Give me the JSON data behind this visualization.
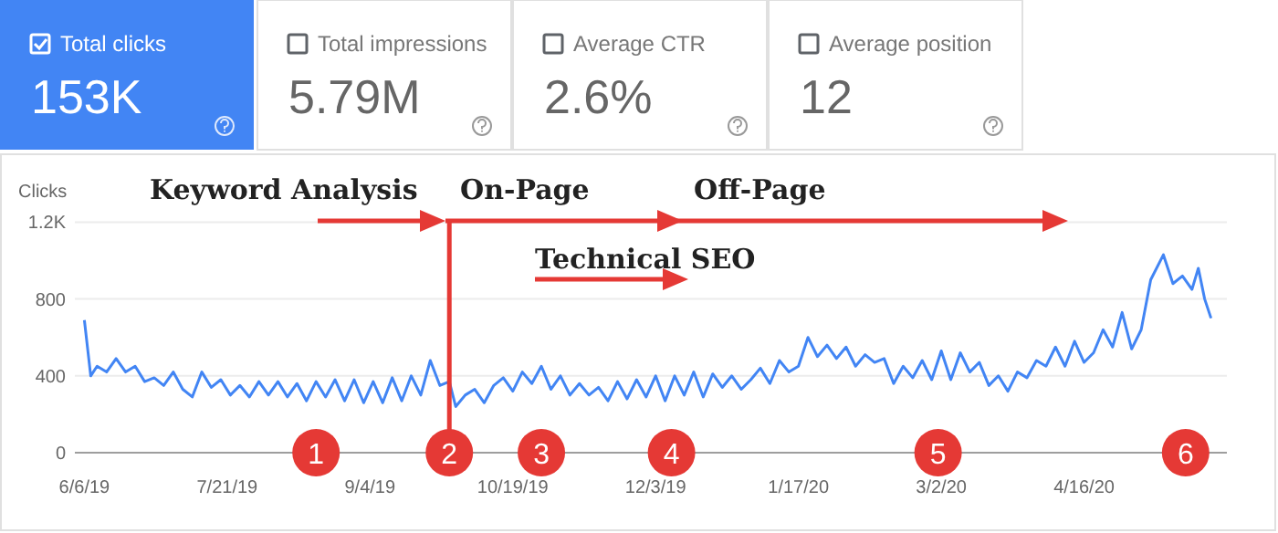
{
  "chart_data": [
    {
      "type": "other",
      "annotations": [
        "Total clicks",
        "153K",
        "Total impressions",
        "5.79M",
        "Average CTR",
        "2.6%",
        "Average position",
        "12"
      ]
    },
    {
      "type": "line",
      "ylabel": "Clicks",
      "color": "#4285f4",
      "grid": "y",
      "marker": "none",
      "xlim": [
        "2019-06-03",
        "2020-05-31"
      ],
      "ylim": [
        0,
        1200
      ],
      "yticks": [
        0,
        400,
        800,
        {
          "value": 1200,
          "label": "1.2K"
        }
      ],
      "xticks": [
        {
          "value": "2019-06-06",
          "label": "6/6/19"
        },
        {
          "value": "2019-07-21",
          "label": "7/21/19"
        },
        {
          "value": "2019-09-04",
          "label": "9/4/19"
        },
        {
          "value": "2019-10-19",
          "label": "10/19/19"
        },
        {
          "value": "2019-12-03",
          "label": "12/3/19"
        },
        {
          "value": "2020-01-17",
          "label": "1/17/20"
        },
        {
          "value": "2020-03-02",
          "label": "3/2/20"
        },
        {
          "value": "2020-04-16",
          "label": "4/16/20"
        }
      ],
      "x": [
        "2019-06-06",
        "2019-06-08",
        "2019-06-10",
        "2019-06-13",
        "2019-06-16",
        "2019-06-19",
        "2019-06-22",
        "2019-06-25",
        "2019-06-28",
        "2019-07-01",
        "2019-07-04",
        "2019-07-07",
        "2019-07-10",
        "2019-07-13",
        "2019-07-16",
        "2019-07-19",
        "2019-07-22",
        "2019-07-25",
        "2019-07-28",
        "2019-07-31",
        "2019-08-03",
        "2019-08-06",
        "2019-08-09",
        "2019-08-12",
        "2019-08-15",
        "2019-08-18",
        "2019-08-21",
        "2019-08-24",
        "2019-08-27",
        "2019-08-30",
        "2019-09-02",
        "2019-09-05",
        "2019-09-08",
        "2019-09-11",
        "2019-09-14",
        "2019-09-17",
        "2019-09-20",
        "2019-09-23",
        "2019-09-26",
        "2019-09-29",
        "2019-10-01",
        "2019-10-04",
        "2019-10-07",
        "2019-10-10",
        "2019-10-13",
        "2019-10-16",
        "2019-10-19",
        "2019-10-22",
        "2019-10-25",
        "2019-10-28",
        "2019-10-31",
        "2019-11-03",
        "2019-11-06",
        "2019-11-09",
        "2019-11-12",
        "2019-11-15",
        "2019-11-18",
        "2019-11-21",
        "2019-11-24",
        "2019-11-27",
        "2019-11-30",
        "2019-12-03",
        "2019-12-06",
        "2019-12-09",
        "2019-12-12",
        "2019-12-15",
        "2019-12-18",
        "2019-12-21",
        "2019-12-24",
        "2019-12-27",
        "2019-12-30",
        "2020-01-02",
        "2020-01-05",
        "2020-01-08",
        "2020-01-11",
        "2020-01-14",
        "2020-01-17",
        "2020-01-20",
        "2020-01-23",
        "2020-01-26",
        "2020-01-29",
        "2020-02-01",
        "2020-02-04",
        "2020-02-07",
        "2020-02-10",
        "2020-02-13",
        "2020-02-16",
        "2020-02-19",
        "2020-02-22",
        "2020-02-25",
        "2020-02-28",
        "2020-03-02",
        "2020-03-05",
        "2020-03-08",
        "2020-03-11",
        "2020-03-14",
        "2020-03-17",
        "2020-03-20",
        "2020-03-23",
        "2020-03-26",
        "2020-03-29",
        "2020-04-01",
        "2020-04-04",
        "2020-04-07",
        "2020-04-10",
        "2020-04-13",
        "2020-04-16",
        "2020-04-19",
        "2020-04-22",
        "2020-04-25",
        "2020-04-28",
        "2020-05-01",
        "2020-05-04",
        "2020-05-07",
        "2020-05-11",
        "2020-05-14",
        "2020-05-17",
        "2020-05-20",
        "2020-05-22",
        "2020-05-24",
        "2020-05-26"
      ],
      "values": [
        690,
        400,
        450,
        420,
        490,
        420,
        450,
        370,
        390,
        350,
        420,
        330,
        290,
        420,
        340,
        380,
        300,
        350,
        290,
        370,
        300,
        370,
        290,
        360,
        270,
        370,
        290,
        380,
        270,
        380,
        260,
        370,
        260,
        390,
        270,
        400,
        300,
        480,
        350,
        370,
        240,
        300,
        330,
        260,
        350,
        390,
        320,
        420,
        360,
        450,
        330,
        400,
        300,
        360,
        300,
        340,
        270,
        370,
        280,
        380,
        290,
        400,
        270,
        400,
        300,
        420,
        290,
        410,
        340,
        400,
        330,
        380,
        440,
        360,
        480,
        420,
        450,
        600,
        500,
        560,
        490,
        550,
        450,
        510,
        470,
        490,
        360,
        450,
        390,
        480,
        380,
        530,
        380,
        520,
        420,
        470,
        350,
        400,
        320,
        420,
        390,
        480,
        450,
        550,
        450,
        580,
        470,
        520,
        640,
        550,
        730,
        540,
        640,
        900,
        1030,
        880,
        920,
        850,
        960,
        800,
        700
      ],
      "ref_lines": [
        {
          "axis": "x",
          "value": "2019-09-29",
          "color": "#e53935"
        }
      ],
      "annotations": [
        "Keyword Analysis",
        "On-Page",
        "Off-Page",
        "Technical SEO",
        {
          "text": "1",
          "x": "2019-08-18",
          "y": 0
        },
        {
          "text": "2",
          "x": "2019-09-29",
          "y": 0
        },
        {
          "text": "3",
          "x": "2019-10-28",
          "y": 0
        },
        {
          "text": "4",
          "x": "2019-12-08",
          "y": 0
        },
        {
          "text": "5",
          "x": "2020-03-01",
          "y": 0
        },
        {
          "text": "6",
          "x": "2020-05-18",
          "y": 0
        }
      ]
    }
  ]
}
